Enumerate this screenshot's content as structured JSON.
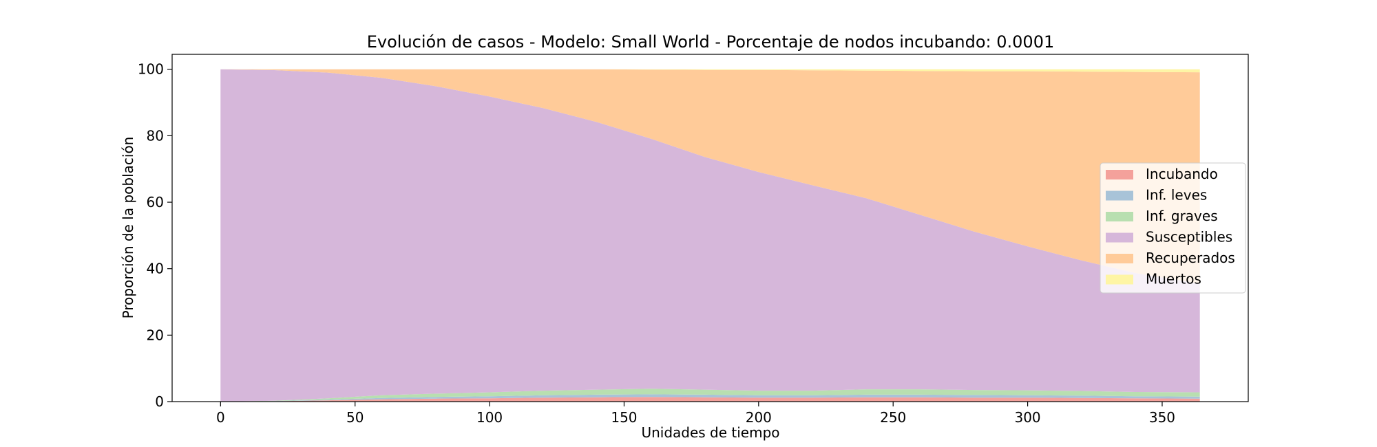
{
  "chart_data": {
    "type": "area",
    "stacked": true,
    "title": "Evolución de casos - Modelo: Small World - Porcentaje de nodos incubando: 0.0001",
    "xlabel": "Unidades de tiempo",
    "ylabel": "Proporción de la población",
    "xlim": [
      -18,
      382
    ],
    "ylim": [
      0,
      104.5
    ],
    "xticks": [
      0,
      50,
      100,
      150,
      200,
      250,
      300,
      350
    ],
    "yticks": [
      0,
      20,
      40,
      60,
      80,
      100
    ],
    "grid": false,
    "legend_position": "center-right",
    "x": [
      0,
      20,
      40,
      60,
      80,
      100,
      120,
      140,
      160,
      180,
      200,
      220,
      240,
      260,
      280,
      300,
      320,
      340,
      364
    ],
    "series": [
      {
        "name": "Incubando",
        "color": "#f4a19b",
        "values": [
          0.0,
          0.1,
          0.4,
          0.7,
          0.9,
          1.0,
          1.2,
          1.3,
          1.4,
          1.3,
          1.2,
          1.2,
          1.3,
          1.3,
          1.2,
          1.2,
          1.1,
          1.0,
          0.9
        ]
      },
      {
        "name": "Inf. leves",
        "color": "#a8c3d8",
        "values": [
          0.0,
          0.05,
          0.2,
          0.4,
          0.5,
          0.6,
          0.7,
          0.8,
          0.8,
          0.8,
          0.7,
          0.7,
          0.8,
          0.8,
          0.8,
          0.7,
          0.7,
          0.6,
          0.6
        ]
      },
      {
        "name": "Inf. graves",
        "color": "#b8dfb0",
        "values": [
          0.0,
          0.1,
          0.4,
          0.8,
          1.0,
          1.2,
          1.4,
          1.5,
          1.7,
          1.5,
          1.4,
          1.4,
          1.6,
          1.6,
          1.5,
          1.5,
          1.4,
          1.3,
          1.3
        ]
      },
      {
        "name": "Susceptibles",
        "color": "#d6b7da",
        "values": [
          100.0,
          99.5,
          98.0,
          95.5,
          92.5,
          89.0,
          85.0,
          80.5,
          75.2,
          70.0,
          65.8,
          61.8,
          57.5,
          52.5,
          47.7,
          43.3,
          39.3,
          35.8,
          32.7
        ]
      },
      {
        "name": "Recuperados",
        "color": "#ffcb99",
        "values": [
          0.0,
          0.25,
          1.0,
          2.6,
          5.1,
          8.2,
          11.7,
          15.9,
          20.8,
          26.2,
          30.7,
          34.6,
          38.4,
          43.3,
          48.2,
          52.7,
          56.8,
          60.5,
          63.6
        ]
      },
      {
        "name": "Muertos",
        "color": "#fef5a5",
        "values": [
          0.0,
          0.0,
          0.0,
          0.0,
          0.0,
          0.0,
          0.0,
          0.0,
          0.1,
          0.2,
          0.2,
          0.3,
          0.4,
          0.5,
          0.6,
          0.6,
          0.7,
          0.8,
          0.9
        ]
      }
    ]
  }
}
